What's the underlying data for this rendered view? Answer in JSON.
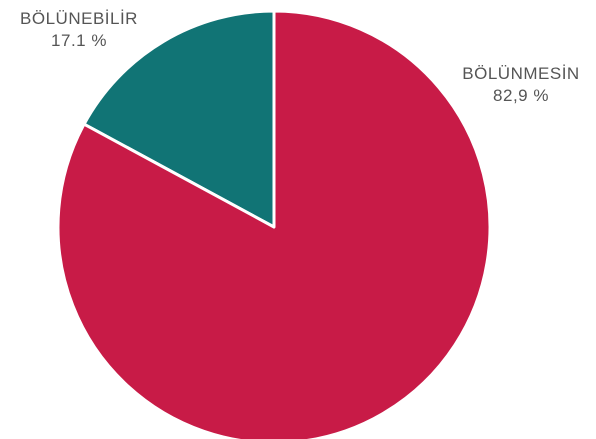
{
  "chart_data": {
    "type": "pie",
    "categories": [
      "BÖLÜNEBİLİR",
      "BÖLÜNMESİN"
    ],
    "values": [
      17.1,
      82.9
    ],
    "value_labels": [
      "17.1 %",
      "82,9 %"
    ],
    "colors": [
      "#117475",
      "#c81b47"
    ],
    "slice_edge_color": "#ffffff",
    "start": "12 o'clock, counterclockwise for first slice",
    "title": "",
    "legend": "none"
  }
}
